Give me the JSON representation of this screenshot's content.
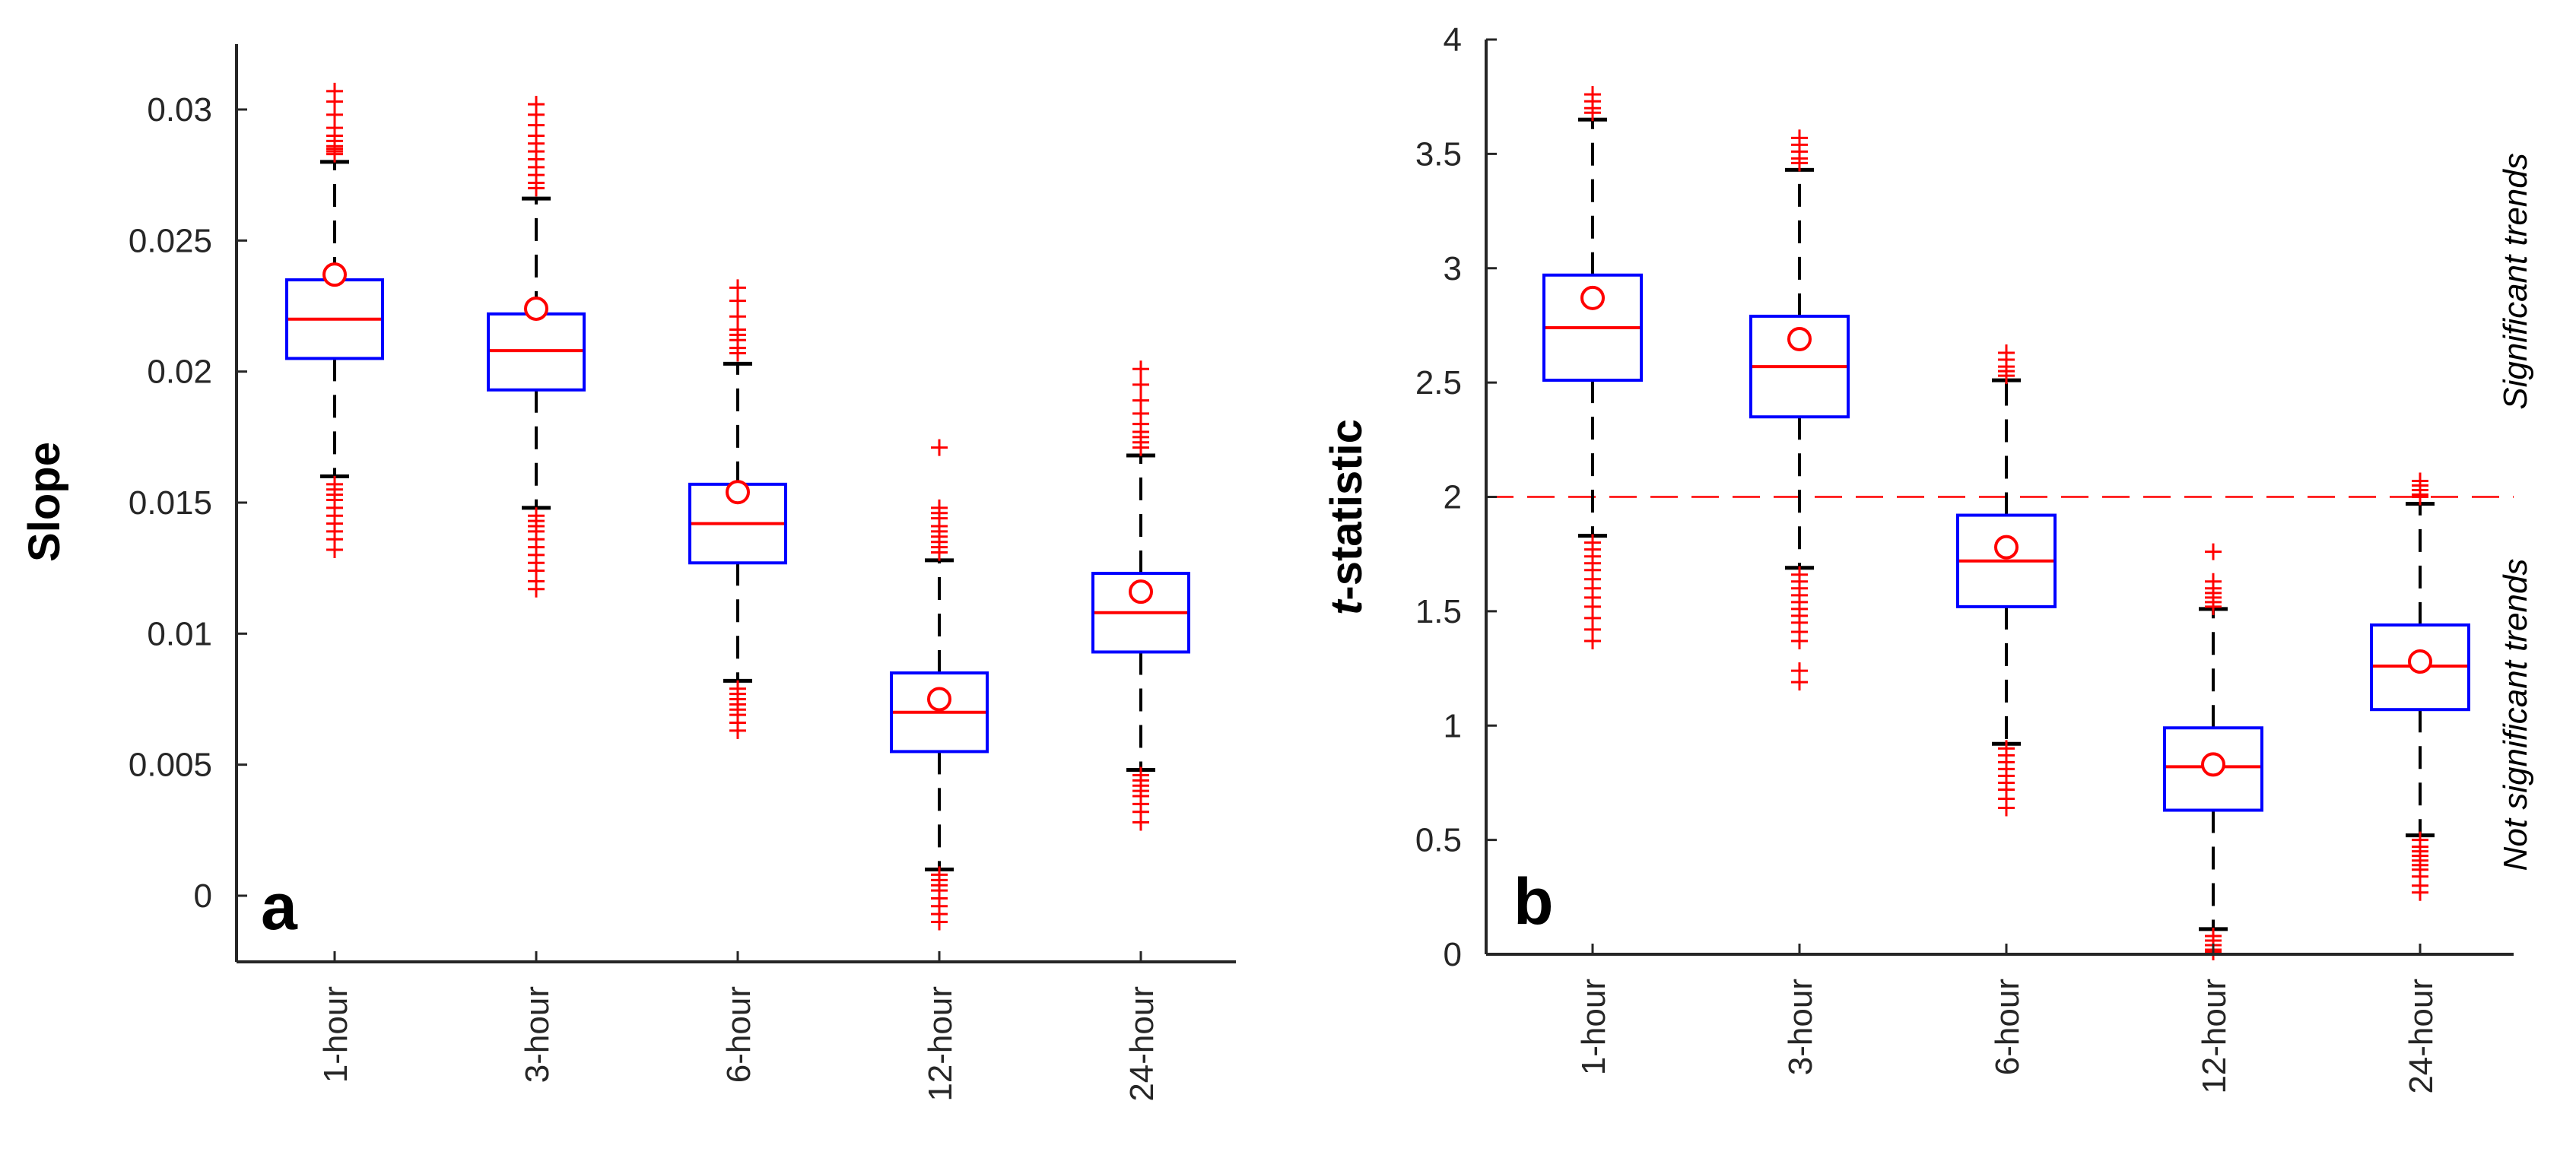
{
  "chart_data": [
    {
      "type": "box",
      "panel_label": "a",
      "ylabel": "Slope",
      "categories": [
        "1-hour",
        "3-hour",
        "6-hour",
        "12-hour",
        "24-hour"
      ],
      "ylim": [
        -0.0028,
        0.0325
      ],
      "yticks": [
        0,
        0.005,
        0.01,
        0.015,
        0.02,
        0.025,
        0.03
      ],
      "ytick_labels": [
        "0",
        "0.005",
        "0.01",
        "0.015",
        "0.02",
        "0.025",
        "0.03"
      ],
      "boxes": [
        {
          "q1": 0.0205,
          "median": 0.022,
          "q3": 0.0235,
          "mean": 0.0237,
          "whisker_low": 0.016,
          "whisker_high": 0.028,
          "outliers": [
            0.0307,
            0.0303,
            0.0298,
            0.0293,
            0.029,
            0.0288,
            0.0286,
            0.0285,
            0.0284,
            0.0283,
            0.0157,
            0.0155,
            0.0153,
            0.0151,
            0.0148,
            0.0145,
            0.0142,
            0.0139,
            0.0136,
            0.0132
          ]
        },
        {
          "q1": 0.0193,
          "median": 0.0208,
          "q3": 0.0222,
          "mean": 0.0224,
          "whisker_low": 0.0148,
          "whisker_high": 0.0266,
          "outliers": [
            0.0302,
            0.0298,
            0.0294,
            0.029,
            0.0287,
            0.0284,
            0.0281,
            0.0278,
            0.0275,
            0.0272,
            0.027,
            0.0145,
            0.0143,
            0.0141,
            0.0139,
            0.0136,
            0.0133,
            0.013,
            0.0127,
            0.0124,
            0.012,
            0.0117
          ]
        },
        {
          "q1": 0.0127,
          "median": 0.0142,
          "q3": 0.0157,
          "mean": 0.0154,
          "whisker_low": 0.0082,
          "whisker_high": 0.0203,
          "outliers": [
            0.0232,
            0.0227,
            0.0221,
            0.0216,
            0.0214,
            0.0212,
            0.0209,
            0.0207,
            0.0079,
            0.0077,
            0.0075,
            0.0073,
            0.0071,
            0.0069,
            0.0066,
            0.0063
          ]
        },
        {
          "q1": 0.0055,
          "median": 0.007,
          "q3": 0.0085,
          "mean": 0.0075,
          "whisker_low": 0.001,
          "whisker_high": 0.0128,
          "outliers": [
            0.0171,
            0.0148,
            0.0146,
            0.0144,
            0.0141,
            0.0139,
            0.0137,
            0.0135,
            0.0133,
            0.0131,
            0.0008,
            0.0006,
            0.0004,
            0.0002,
            -0.0001,
            -0.0004,
            -0.0007,
            -0.001
          ]
        },
        {
          "q1": 0.0093,
          "median": 0.0108,
          "q3": 0.0123,
          "mean": 0.0116,
          "whisker_low": 0.0048,
          "whisker_high": 0.0168,
          "outliers": [
            0.0201,
            0.0195,
            0.0189,
            0.0184,
            0.018,
            0.0177,
            0.0175,
            0.0173,
            0.0171,
            0.0046,
            0.0044,
            0.0042,
            0.004,
            0.0038,
            0.0035,
            0.0032,
            0.0028
          ]
        }
      ]
    },
    {
      "type": "box",
      "panel_label": "b",
      "ylabel_prefix": "t",
      "ylabel_suffix": "-statistic",
      "categories": [
        "1-hour",
        "3-hour",
        "6-hour",
        "12-hour",
        "24-hour"
      ],
      "ylim": [
        0,
        4
      ],
      "yticks": [
        0,
        0.5,
        1,
        1.5,
        2,
        2.5,
        3,
        3.5,
        4
      ],
      "ytick_labels": [
        "0",
        "0.5",
        "1",
        "1.5",
        "2",
        "2.5",
        "3",
        "3.5",
        "4"
      ],
      "threshold": 2,
      "annotation_upper": "Significant trends",
      "annotation_lower": "Not significant trends",
      "boxes": [
        {
          "q1": 2.51,
          "median": 2.74,
          "q3": 2.97,
          "mean": 2.87,
          "whisker_low": 1.83,
          "whisker_high": 3.65,
          "outliers": [
            3.76,
            3.73,
            3.7,
            3.68,
            1.8,
            1.77,
            1.74,
            1.71,
            1.68,
            1.64,
            1.6,
            1.56,
            1.52,
            1.47,
            1.42,
            1.37
          ]
        },
        {
          "q1": 2.35,
          "median": 2.57,
          "q3": 2.79,
          "mean": 2.69,
          "whisker_low": 1.69,
          "whisker_high": 3.43,
          "outliers": [
            3.57,
            3.54,
            3.51,
            3.48,
            3.46,
            1.66,
            1.63,
            1.6,
            1.57,
            1.54,
            1.51,
            1.48,
            1.45,
            1.41,
            1.37,
            1.24,
            1.19
          ]
        },
        {
          "q1": 1.52,
          "median": 1.72,
          "q3": 1.92,
          "mean": 1.78,
          "whisker_low": 0.92,
          "whisker_high": 2.51,
          "outliers": [
            2.63,
            2.6,
            2.57,
            2.55,
            2.53,
            0.9,
            0.87,
            0.84,
            0.81,
            0.78,
            0.75,
            0.72,
            0.68,
            0.64
          ]
        },
        {
          "q1": 0.63,
          "median": 0.82,
          "q3": 0.99,
          "mean": 0.83,
          "whisker_low": 0.11,
          "whisker_high": 1.51,
          "outliers": [
            1.76,
            1.63,
            1.6,
            1.58,
            1.56,
            1.54,
            1.52,
            0.08,
            0.06,
            0.04,
            0.02,
            0.01
          ]
        },
        {
          "q1": 1.07,
          "median": 1.26,
          "q3": 1.44,
          "mean": 1.28,
          "whisker_low": 0.52,
          "whisker_high": 1.97,
          "outliers": [
            2.07,
            2.05,
            2.03,
            2.01,
            2.0,
            0.5,
            0.47,
            0.45,
            0.43,
            0.41,
            0.39,
            0.37,
            0.34,
            0.3,
            0.27
          ]
        }
      ]
    }
  ]
}
